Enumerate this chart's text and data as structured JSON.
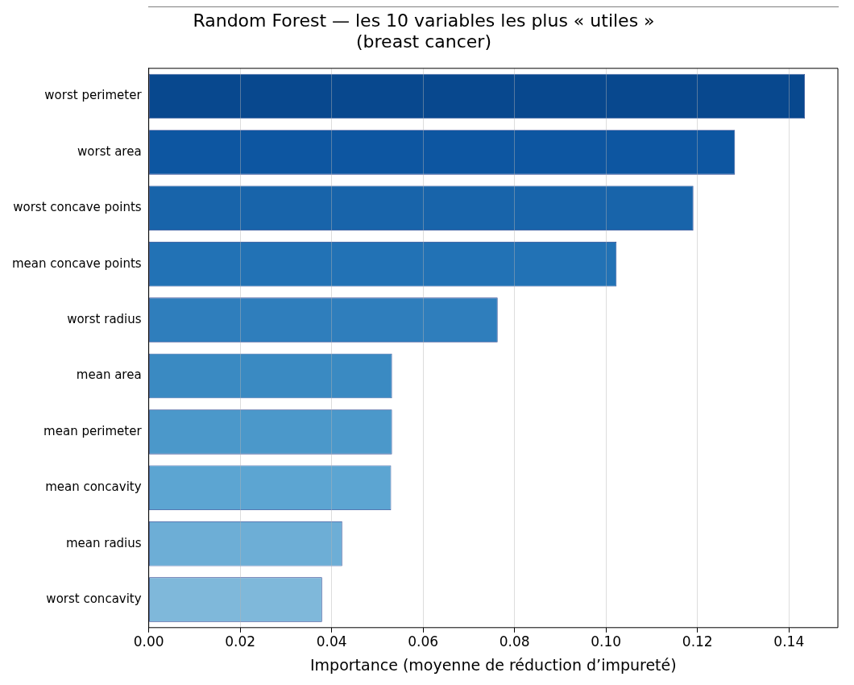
{
  "chart_data": {
    "type": "bar",
    "orientation": "horizontal",
    "title": "Random Forest — les 10 variables les plus « utiles »",
    "subtitle": "(breast cancer)",
    "xlabel": "Importance (moyenne de réduction d’impureté)",
    "categories": [
      "worst perimeter",
      "worst area",
      "worst concave points",
      "mean concave points",
      "worst radius",
      "mean area",
      "mean perimeter",
      "mean concavity",
      "mean radius",
      "worst concavity"
    ],
    "values": [
      0.1435,
      0.1282,
      0.1191,
      0.1023,
      0.0763,
      0.0532,
      0.0532,
      0.053,
      0.0423,
      0.0379
    ],
    "colors": [
      "#08488e",
      "#0d56a1",
      "#1864aa",
      "#2272b5",
      "#2f7ebc",
      "#3a8ac2",
      "#4b98ca",
      "#5ca5d2",
      "#6daed6",
      "#7fb8da"
    ],
    "xlim": [
      0,
      0.1507
    ],
    "xticks": [
      {
        "value": 0,
        "label": "0.00"
      },
      {
        "value": 0.02,
        "label": "0.02"
      },
      {
        "value": 0.04,
        "label": "0.04"
      },
      {
        "value": 0.06,
        "label": "0.06"
      },
      {
        "value": 0.08,
        "label": "0.08"
      },
      {
        "value": 0.1,
        "label": "0.10"
      },
      {
        "value": 0.12,
        "label": "0.12"
      },
      {
        "value": 0.14,
        "label": "0.14"
      }
    ],
    "grid": "x",
    "legend": false
  }
}
